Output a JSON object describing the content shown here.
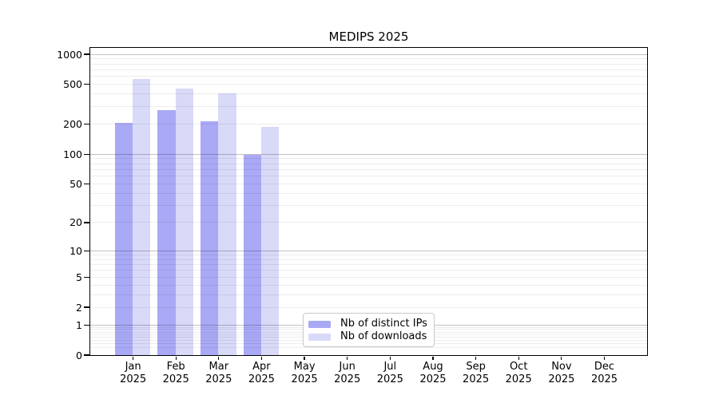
{
  "title": "MEDIPS 2025",
  "axes": {
    "y_ticks": [
      1000,
      500,
      200,
      100,
      50,
      20,
      10,
      5,
      2,
      1,
      0
    ],
    "x_months": [
      "Jan",
      "Feb",
      "Mar",
      "Apr",
      "May",
      "Jun",
      "Jul",
      "Aug",
      "Sep",
      "Oct",
      "Nov",
      "Dec"
    ],
    "x_year": "2025"
  },
  "legend": {
    "items": [
      {
        "label": "Nb of distinct IPs",
        "color": "#a9a9f6"
      },
      {
        "label": "Nb of downloads",
        "color": "#d9d9f8"
      }
    ]
  },
  "colors": {
    "distinct_ips_bar": "#a9a9f6",
    "downloads_bar": "#d9d9f8",
    "major_gridline": "#c2c2c2",
    "minor_gridline": "#ececec",
    "axis_spine": "#000000",
    "background": "#ffffff"
  },
  "chart_data": {
    "type": "bar",
    "title": "MEDIPS 2025",
    "categories": [
      "Jan 2025",
      "Feb 2025",
      "Mar 2025",
      "Apr 2025",
      "May 2025",
      "Jun 2025",
      "Jul 2025",
      "Aug 2025",
      "Sep 2025",
      "Oct 2025",
      "Nov 2025",
      "Dec 2025"
    ],
    "series": [
      {
        "name": "Nb of distinct IPs",
        "color": "#a9a9f6",
        "values": [
          205,
          275,
          213,
          97,
          null,
          null,
          null,
          null,
          null,
          null,
          null,
          null
        ]
      },
      {
        "name": "Nb of downloads",
        "color": "#d9d9f8",
        "values": [
          560,
          450,
          400,
          186,
          null,
          null,
          null,
          null,
          null,
          null,
          null,
          null
        ]
      }
    ],
    "yscale": "log10(1+y)",
    "yticks": [
      0,
      1,
      2,
      5,
      10,
      20,
      50,
      100,
      200,
      500,
      1000
    ],
    "ylim": [
      0,
      1160
    ],
    "grid": "horizontal; major lines at 1,10,100,1000; minor lines at 2-9 multiples per decade",
    "legend_position": "lower center"
  }
}
